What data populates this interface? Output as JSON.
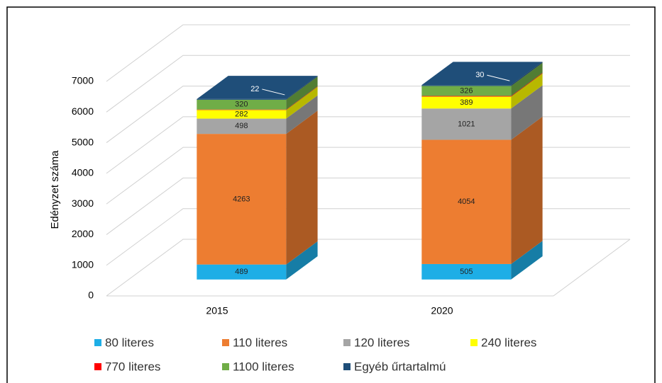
{
  "chart_data": {
    "type": "bar3d_stacked",
    "y_axis_label": "Edényzet száma",
    "categories": [
      "2015",
      "2020"
    ],
    "series": [
      {
        "name": "80 literes",
        "color": "#1eaee6",
        "values": [
          489,
          505
        ]
      },
      {
        "name": "110 literes",
        "color": "#ed7d31",
        "values": [
          4263,
          4054
        ]
      },
      {
        "name": "120 literes",
        "color": "#a5a5a5",
        "values": [
          498,
          1021
        ]
      },
      {
        "name": "240 literes",
        "color": "#ffff00",
        "values": [
          282,
          389
        ]
      },
      {
        "name": "770 literes",
        "color": "#ff0000",
        "values": [
          14,
          20
        ]
      },
      {
        "name": "1100 literes",
        "color": "#70ad47",
        "values": [
          320,
          326
        ]
      },
      {
        "name": "Egyéb űrtartalmú",
        "color": "#1f4e79",
        "values": [
          22,
          30
        ]
      }
    ],
    "ylim": [
      0,
      7000
    ],
    "yticks": [
      0,
      1000,
      2000,
      3000,
      4000,
      5000,
      6000,
      7000
    ],
    "grid": true
  }
}
